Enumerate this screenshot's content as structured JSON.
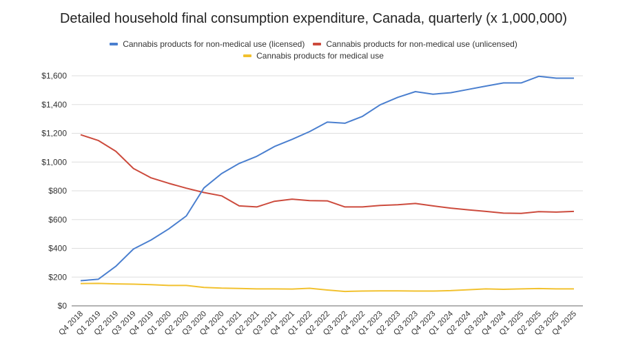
{
  "chart_data": {
    "type": "line",
    "title": "Detailed household final consumption expenditure, Canada, quarterly (x 1,000,000)",
    "xlabel": "",
    "ylabel": "",
    "ylim": [
      0,
      1600
    ],
    "yticks": [
      0,
      200,
      400,
      600,
      800,
      1000,
      1200,
      1400,
      1600
    ],
    "ytick_labels": [
      "$0",
      "$200",
      "$400",
      "$600",
      "$800",
      "$1,000",
      "$1,200",
      "$1,400",
      "$1,600"
    ],
    "grid": true,
    "legend_position": "top-center",
    "categories": [
      "Q4 2018",
      "Q1 2019",
      "Q2 2019",
      "Q3 2019",
      "Q4 2019",
      "Q1 2020",
      "Q2 2020",
      "Q3 2020",
      "Q4 2020",
      "Q1 2021",
      "Q2 2021",
      "Q3 2021",
      "Q4 2021",
      "Q1 2022",
      "Q2 2022",
      "Q3 2022",
      "Q4 2022",
      "Q1 2023",
      "Q2 2023",
      "Q3 2023",
      "Q4 2023",
      "Q1 2024",
      "Q2 2024",
      "Q3 2024",
      "Q4 2024",
      "Q1 2025",
      "Q2 2025",
      "Q3 2025",
      "Q4 2025"
    ],
    "series": [
      {
        "name": "Cannabis products for non-medical use (licensed)",
        "color": "#4a7fcf",
        "values": [
          175,
          185,
          275,
          395,
          458,
          535,
          625,
          820,
          920,
          990,
          1040,
          1108,
          1158,
          1212,
          1278,
          1270,
          1318,
          1398,
          1450,
          1490,
          1472,
          1482,
          1505,
          1528,
          1550,
          1550,
          1596,
          1583,
          1583
        ]
      },
      {
        "name": "Cannabis products for non-medical use (unlicensed)",
        "color": "#cc4a3c",
        "values": [
          1190,
          1150,
          1075,
          955,
          890,
          852,
          818,
          788,
          765,
          695,
          688,
          727,
          742,
          732,
          730,
          688,
          688,
          698,
          703,
          712,
          695,
          680,
          668,
          657,
          645,
          643,
          655,
          652,
          657
        ]
      },
      {
        "name": "Cannabis products for medical use",
        "color": "#f2c12e",
        "values": [
          155,
          156,
          153,
          151,
          147,
          142,
          142,
          128,
          123,
          121,
          118,
          118,
          117,
          122,
          110,
          100,
          103,
          104,
          104,
          103,
          103,
          106,
          112,
          118,
          115,
          118,
          120,
          118,
          118
        ]
      }
    ]
  }
}
